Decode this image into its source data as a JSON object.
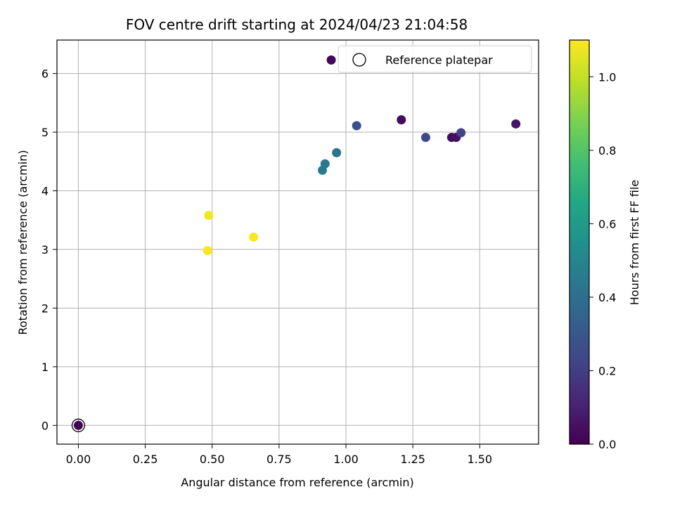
{
  "chart_data": {
    "type": "scatter",
    "title": "FOV centre drift starting at 2024/04/23 21:04:58",
    "xlabel": "Angular distance from reference (arcmin)",
    "ylabel": "Rotation from reference (arcmin)",
    "xlim": [
      -0.08,
      1.72
    ],
    "ylim": [
      -0.32,
      6.57
    ],
    "xticks": [
      0.0,
      0.25,
      0.5,
      0.75,
      1.0,
      1.25,
      1.5
    ],
    "xtick_labels": [
      "0.00",
      "0.25",
      "0.50",
      "0.75",
      "1.00",
      "1.25",
      "1.50"
    ],
    "yticks": [
      0,
      1,
      2,
      3,
      4,
      5,
      6
    ],
    "ytick_labels": [
      "0",
      "1",
      "2",
      "3",
      "4",
      "5",
      "6"
    ],
    "grid": true,
    "legend": {
      "position": "top-right",
      "entries": [
        "Reference platepar"
      ]
    },
    "reference_point": {
      "x": 0.0,
      "y": 0.0
    },
    "colorbar": {
      "label": "Hours from first FF file",
      "colormap": "viridis",
      "range": [
        0.0,
        1.1
      ],
      "ticks": [
        0.0,
        0.2,
        0.4,
        0.6,
        0.8,
        1.0
      ],
      "tick_labels": [
        "0.0",
        "0.2",
        "0.4",
        "0.6",
        "0.8",
        "1.0"
      ]
    },
    "points": [
      {
        "x": 0.0,
        "y": 0.0,
        "hours": 0.0
      },
      {
        "x": 0.945,
        "y": 6.23,
        "hours": 0.02
      },
      {
        "x": 1.207,
        "y": 5.21,
        "hours": 0.03
      },
      {
        "x": 1.395,
        "y": 4.91,
        "hours": 0.04
      },
      {
        "x": 1.412,
        "y": 4.91,
        "hours": 0.05
      },
      {
        "x": 1.635,
        "y": 5.14,
        "hours": 0.06
      },
      {
        "x": 1.43,
        "y": 4.99,
        "hours": 0.22
      },
      {
        "x": 1.298,
        "y": 4.91,
        "hours": 0.24
      },
      {
        "x": 1.04,
        "y": 5.11,
        "hours": 0.27
      },
      {
        "x": 0.965,
        "y": 4.65,
        "hours": 0.42
      },
      {
        "x": 0.922,
        "y": 4.46,
        "hours": 0.44
      },
      {
        "x": 0.912,
        "y": 4.35,
        "hours": 0.45
      },
      {
        "x": 0.487,
        "y": 3.58,
        "hours": 1.08
      },
      {
        "x": 0.483,
        "y": 2.98,
        "hours": 1.09
      },
      {
        "x": 0.655,
        "y": 3.21,
        "hours": 1.1
      }
    ]
  }
}
